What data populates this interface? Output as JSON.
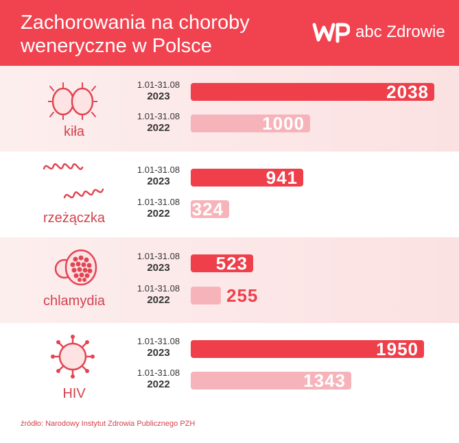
{
  "header": {
    "title_line1": "Zachorowania na choroby",
    "title_line2": "weneryczne w Polsce",
    "logo_text": "abc Zdrowie"
  },
  "source": "źródło: Narodowy Instytut Zdrowia Publicznego PZH",
  "colors": {
    "header": "#f0424f",
    "bar_2023": "#ee3f4a",
    "bar_2022": "#f6b4ba",
    "label": "#d2424c"
  },
  "chart_data": {
    "type": "bar",
    "orientation": "horizontal",
    "title": "Zachorowania na choroby weneryczne w Polsce",
    "categories": [
      "kiła",
      "rzeżączka",
      "chlamydia",
      "HIV"
    ],
    "series": [
      {
        "name": "1.01-31.08 2023",
        "period": "1.01-31.08",
        "year": "2023",
        "values": [
          2038,
          941,
          523,
          1950
        ]
      },
      {
        "name": "1.01-31.08 2022",
        "period": "1.01-31.08",
        "year": "2022",
        "values": [
          1000,
          324,
          255,
          1343
        ]
      }
    ],
    "value_labels": {
      "series0": [
        "2038",
        "941",
        "523",
        "1950"
      ],
      "series1": [
        "1000",
        "324",
        "255",
        "1343"
      ]
    },
    "xlim": [
      0,
      2038
    ],
    "grid": false,
    "legend": "none"
  },
  "icons": [
    "syphilis-bacteria-icon",
    "gonorrhea-spirochete-icon",
    "chlamydia-cell-icon",
    "hiv-virus-icon"
  ]
}
